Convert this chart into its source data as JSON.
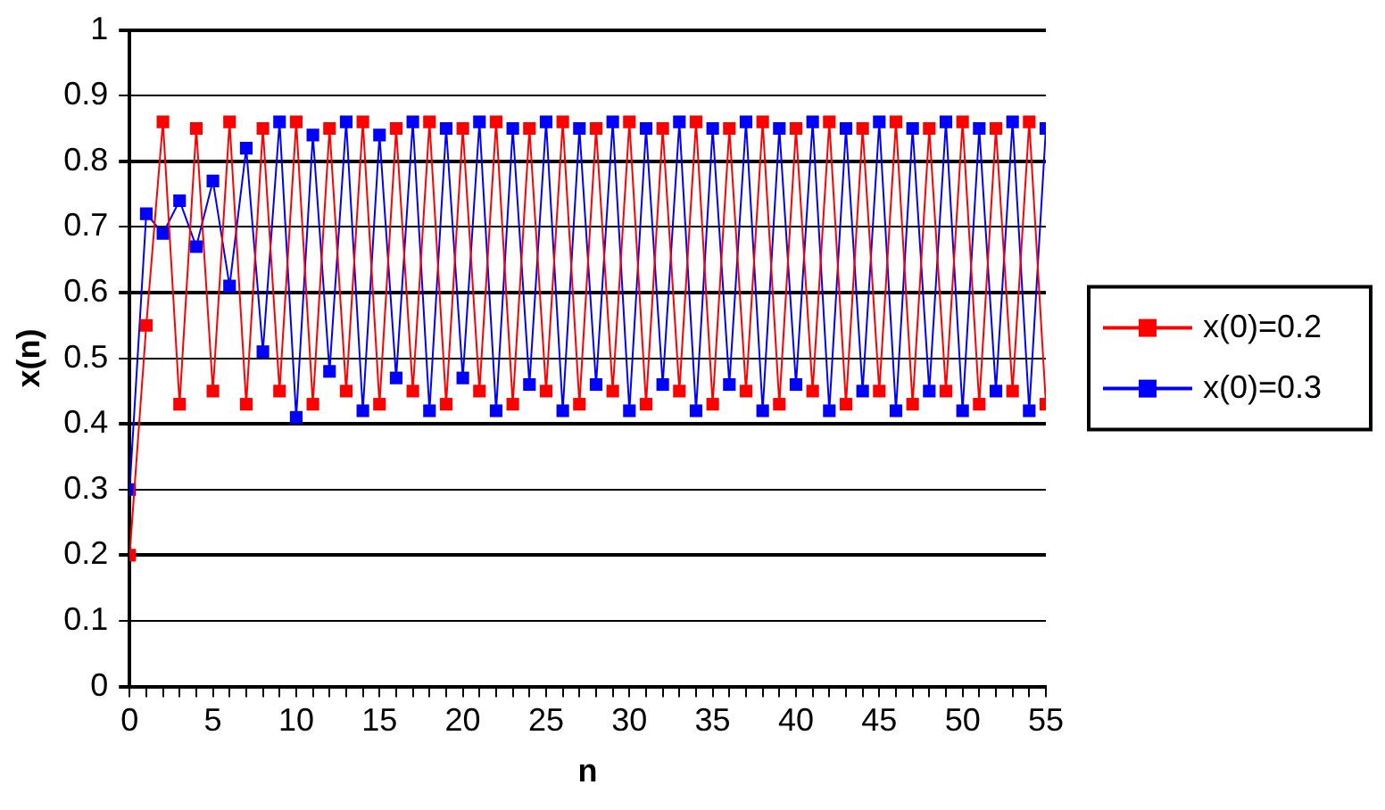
{
  "chart_data": {
    "type": "line",
    "xlabel": "n",
    "ylabel": "x(n)",
    "x": [
      0,
      1,
      2,
      3,
      4,
      5,
      6,
      7,
      8,
      9,
      10,
      11,
      12,
      13,
      14,
      15,
      16,
      17,
      18,
      19,
      20,
      21,
      22,
      23,
      24,
      25,
      26,
      27,
      28,
      29,
      30,
      31,
      32,
      33,
      34,
      35,
      36,
      37,
      38,
      39,
      40,
      41,
      42,
      43,
      44,
      45,
      46,
      47,
      48,
      49,
      50,
      51,
      52,
      53,
      54,
      55
    ],
    "series": [
      {
        "name": "x(0)=0.2",
        "color": "#ff0000",
        "values": [
          0.2,
          0.55,
          0.86,
          0.43,
          0.85,
          0.45,
          0.86,
          0.43,
          0.85,
          0.45,
          0.86,
          0.43,
          0.85,
          0.45,
          0.86,
          0.43,
          0.85,
          0.45,
          0.86,
          0.43,
          0.85,
          0.45,
          0.86,
          0.43,
          0.85,
          0.45,
          0.86,
          0.43,
          0.85,
          0.45,
          0.86,
          0.43,
          0.85,
          0.45,
          0.86,
          0.43,
          0.85,
          0.45,
          0.86,
          0.43,
          0.85,
          0.45,
          0.86,
          0.43,
          0.85,
          0.45,
          0.86,
          0.43,
          0.85,
          0.45,
          0.86,
          0.43,
          0.85,
          0.45,
          0.86,
          0.43
        ]
      },
      {
        "name": "x(0)=0.3",
        "color": "#0000ff",
        "values": [
          0.3,
          0.72,
          0.69,
          0.74,
          0.67,
          0.77,
          0.61,
          0.82,
          0.51,
          0.86,
          0.41,
          0.84,
          0.48,
          0.86,
          0.42,
          0.84,
          0.47,
          0.86,
          0.42,
          0.85,
          0.47,
          0.86,
          0.42,
          0.85,
          0.46,
          0.86,
          0.42,
          0.85,
          0.46,
          0.86,
          0.42,
          0.85,
          0.46,
          0.86,
          0.42,
          0.85,
          0.46,
          0.86,
          0.42,
          0.85,
          0.46,
          0.86,
          0.42,
          0.85,
          0.45,
          0.86,
          0.42,
          0.85,
          0.45,
          0.86,
          0.42,
          0.85,
          0.45,
          0.86,
          0.42,
          0.85
        ]
      }
    ],
    "xlim": [
      0,
      55
    ],
    "xticks": [
      0,
      {
        "value": 1,
        "label": null
      },
      {
        "value": 2,
        "label": null
      },
      {
        "value": 3,
        "label": null
      },
      {
        "value": 4,
        "label": null
      },
      5,
      {
        "value": 6,
        "label": null
      },
      {
        "value": 7,
        "label": null
      },
      {
        "value": 8,
        "label": null
      },
      {
        "value": 9,
        "label": null
      },
      10,
      {
        "value": 11,
        "label": null
      },
      {
        "value": 12,
        "label": null
      },
      {
        "value": 13,
        "label": null
      },
      {
        "value": 14,
        "label": null
      },
      15,
      {
        "value": 16,
        "label": null
      },
      {
        "value": 17,
        "label": null
      },
      {
        "value": 18,
        "label": null
      },
      {
        "value": 19,
        "label": null
      },
      20,
      {
        "value": 21,
        "label": null
      },
      {
        "value": 22,
        "label": null
      },
      {
        "value": 23,
        "label": null
      },
      {
        "value": 24,
        "label": null
      },
      25,
      {
        "value": 26,
        "label": null
      },
      {
        "value": 27,
        "label": null
      },
      {
        "value": 28,
        "label": null
      },
      {
        "value": 29,
        "label": null
      },
      30,
      {
        "value": 31,
        "label": null
      },
      {
        "value": 32,
        "label": null
      },
      {
        "value": 33,
        "label": null
      },
      {
        "value": 34,
        "label": null
      },
      35,
      {
        "value": 36,
        "label": null
      },
      {
        "value": 37,
        "label": null
      },
      {
        "value": 38,
        "label": null
      },
      {
        "value": 39,
        "label": null
      },
      40,
      {
        "value": 41,
        "label": null
      },
      {
        "value": 42,
        "label": null
      },
      {
        "value": 43,
        "label": null
      },
      {
        "value": 44,
        "label": null
      },
      45,
      {
        "value": 46,
        "label": null
      },
      {
        "value": 47,
        "label": null
      },
      {
        "value": 48,
        "label": null
      },
      {
        "value": 49,
        "label": null
      },
      50,
      {
        "value": 51,
        "label": null
      },
      {
        "value": 52,
        "label": null
      },
      {
        "value": 53,
        "label": null
      },
      {
        "value": 54,
        "label": null
      },
      55
    ],
    "ylim": [
      0,
      1
    ],
    "yticks": [
      0,
      0.1,
      0.2,
      0.3,
      0.4,
      0.5,
      0.6,
      0.7,
      0.8,
      0.9,
      1
    ],
    "grid": "y",
    "legend": "right",
    "marker": "square",
    "line_style": "solid"
  }
}
